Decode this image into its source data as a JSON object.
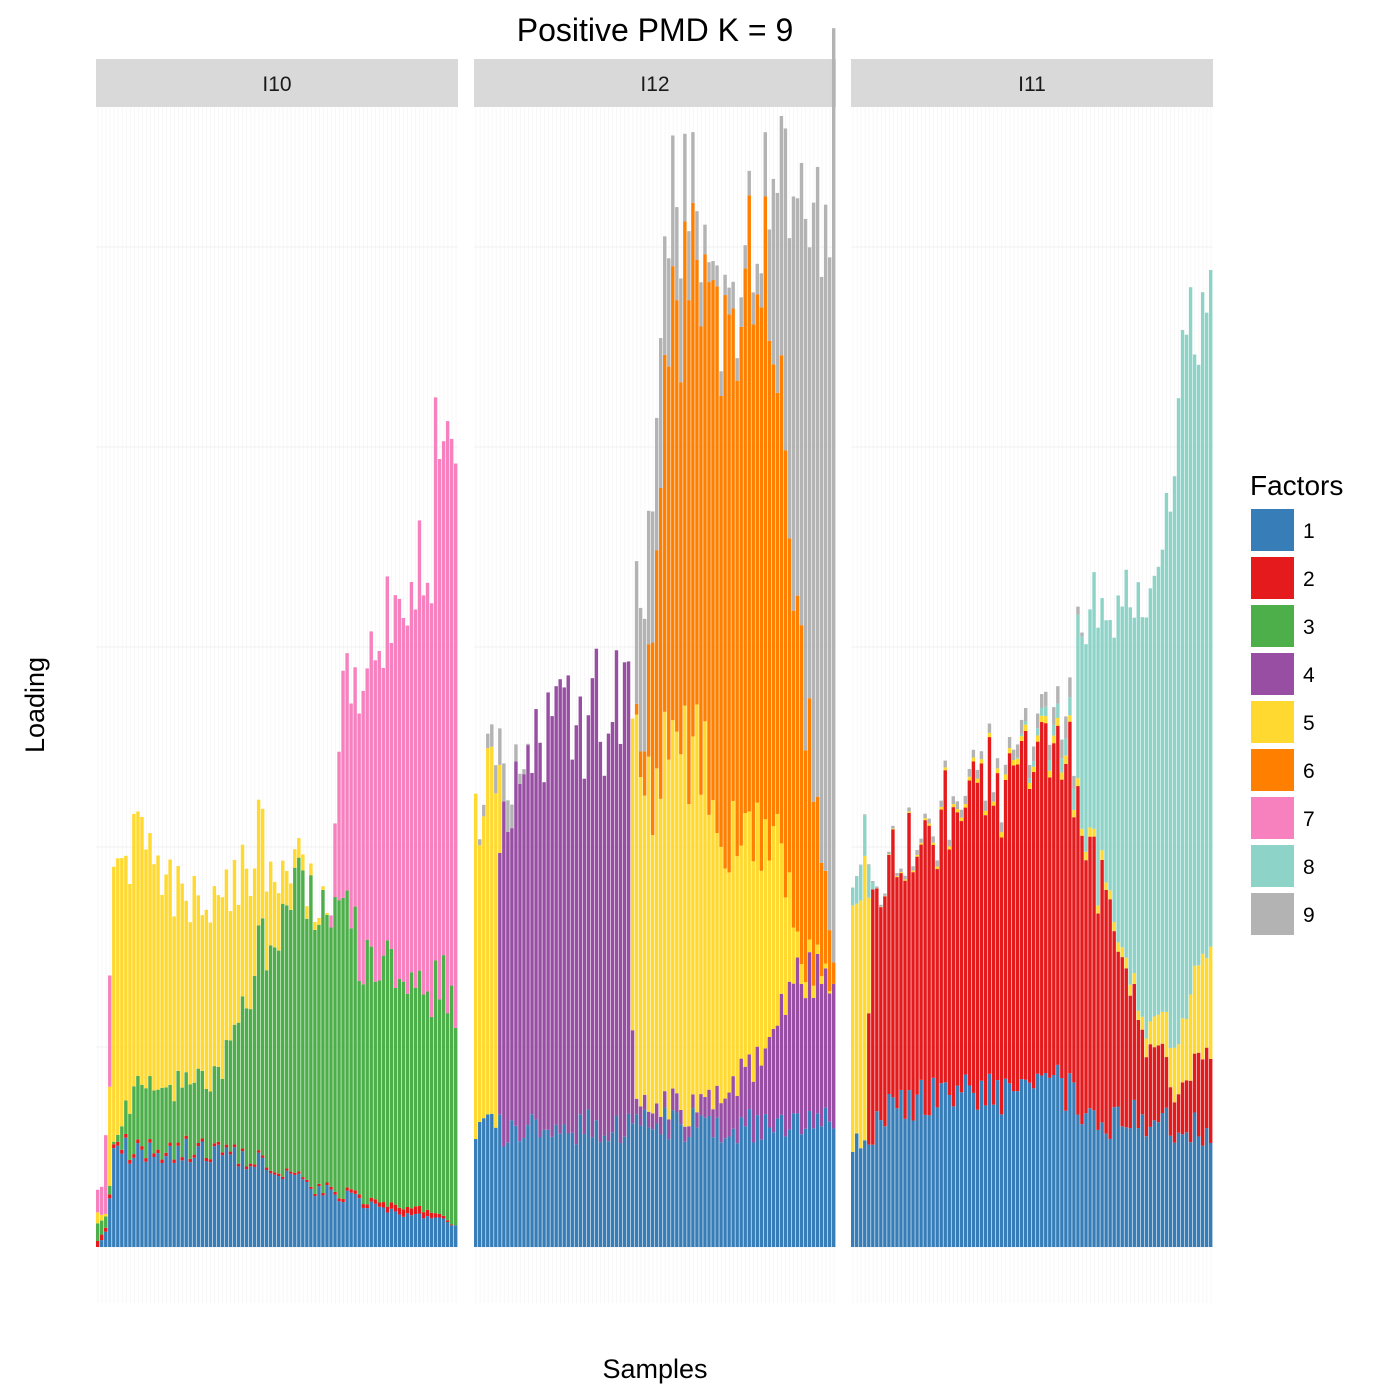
{
  "chart_data": {
    "type": "bar",
    "stacked": true,
    "title": "Positive PMD K = 9",
    "xlabel": "Samples",
    "ylabel": "Loading",
    "x_tick_labels_shown": false,
    "y_tick_labels_shown": false,
    "grid": true,
    "legend": {
      "title": "Factors",
      "position": "right",
      "items": [
        {
          "label": "1",
          "color": "#377EB8"
        },
        {
          "label": "2",
          "color": "#E41A1C"
        },
        {
          "label": "3",
          "color": "#4DAF4A"
        },
        {
          "label": "4",
          "color": "#984EA3"
        },
        {
          "label": "5",
          "color": "#FFD92F"
        },
        {
          "label": "6",
          "color": "#FF7F00"
        },
        {
          "label": "7",
          "color": "#F781BF"
        },
        {
          "label": "8",
          "color": "#8DD3C7"
        },
        {
          "label": "9",
          "color": "#B3B3B3"
        }
      ]
    },
    "ylim": [
      -0.28,
      5.7
    ],
    "samples_per_panel": 90,
    "panels": [
      {
        "label": "I10",
        "factors_shown": [
          "1",
          "2",
          "3",
          "5",
          "7"
        ],
        "segments": [
          {
            "factor": "1",
            "profile": [
              [
                0,
                0.0
              ],
              [
                0.03,
                0.1
              ],
              [
                0.04,
                0.49
              ],
              [
                0.2,
                0.48
              ],
              [
                0.35,
                0.46
              ],
              [
                0.5,
                0.4
              ],
              [
                0.6,
                0.3
              ],
              [
                0.75,
                0.22
              ],
              [
                1,
                0.11
              ]
            ]
          },
          {
            "factor": "2",
            "profile": [
              [
                0,
                0.03
              ],
              [
                0.02,
                0.02
              ],
              [
                0.6,
                0.01
              ],
              [
                0.75,
                0.02
              ],
              [
                0.9,
                0.04
              ],
              [
                1,
                0.0
              ]
            ]
          },
          {
            "factor": "3",
            "profile": [
              [
                0,
                0.08
              ],
              [
                0.03,
                0.05
              ],
              [
                0.05,
                0.0
              ],
              [
                0.1,
                0.3
              ],
              [
                0.3,
                0.35
              ],
              [
                0.35,
                0.4
              ],
              [
                0.5,
                1.3
              ],
              [
                0.6,
                1.5
              ],
              [
                0.72,
                1.25
              ],
              [
                0.85,
                1.15
              ],
              [
                1,
                1.13
              ]
            ]
          },
          {
            "factor": "5",
            "profile": [
              [
                0,
                0.05
              ],
              [
                0.03,
                0.0
              ],
              [
                0.04,
                1.35
              ],
              [
                0.1,
                1.25
              ],
              [
                0.2,
                1.0
              ],
              [
                0.35,
                0.8
              ],
              [
                0.45,
                0.55
              ],
              [
                0.55,
                0.1
              ],
              [
                0.65,
                0.0
              ],
              [
                1,
                0.0
              ]
            ]
          },
          {
            "factor": "7",
            "profile": [
              [
                0,
                0.1
              ],
              [
                0.02,
                0.15
              ],
              [
                0.03,
                0.95
              ],
              [
                0.04,
                0.0
              ],
              [
                0.65,
                0.0
              ],
              [
                0.68,
                1.0
              ],
              [
                0.8,
                1.6
              ],
              [
                0.9,
                2.1
              ],
              [
                0.97,
                2.8
              ],
              [
                1,
                2.5
              ]
            ]
          }
        ]
      },
      {
        "label": "I12",
        "factors_shown": [
          "1",
          "4",
          "5",
          "6",
          "9"
        ],
        "segments": [
          {
            "factor": "1",
            "profile": [
              [
                0,
                0.58
              ],
              [
                0.5,
                0.61
              ],
              [
                1,
                0.61
              ]
            ]
          },
          {
            "factor": "4",
            "profile": [
              [
                0,
                0.0
              ],
              [
                0.06,
                0.0
              ],
              [
                0.07,
                1.6
              ],
              [
                0.15,
                1.9
              ],
              [
                0.2,
                2.0
              ],
              [
                0.43,
                2.1
              ],
              [
                0.44,
                0.08
              ],
              [
                0.55,
                0.1
              ],
              [
                0.6,
                0.05
              ],
              [
                0.7,
                0.2
              ],
              [
                0.8,
                0.35
              ],
              [
                0.9,
                0.75
              ],
              [
                1,
                0.7
              ]
            ]
          },
          {
            "factor": "5",
            "profile": [
              [
                0,
                1.6
              ],
              [
                0.06,
                1.7
              ],
              [
                0.07,
                0.0
              ],
              [
                0.43,
                0.0
              ],
              [
                0.44,
                1.8
              ],
              [
                0.5,
                1.6
              ],
              [
                0.6,
                1.9
              ],
              [
                0.7,
                1.3
              ],
              [
                0.8,
                1.1
              ],
              [
                0.85,
                0.9
              ],
              [
                0.9,
                0.1
              ],
              [
                1,
                0.0
              ]
            ]
          },
          {
            "factor": "6",
            "profile": [
              [
                0,
                0.0
              ],
              [
                0.44,
                0.0
              ],
              [
                0.47,
                0.2
              ],
              [
                0.5,
                1.1
              ],
              [
                0.55,
                2.0
              ],
              [
                0.6,
                2.3
              ],
              [
                0.7,
                2.6
              ],
              [
                0.8,
                3.0
              ],
              [
                0.85,
                2.2
              ],
              [
                0.9,
                1.7
              ],
              [
                1,
                0.1
              ]
            ]
          },
          {
            "factor": "9",
            "profile": [
              [
                0,
                0.0
              ],
              [
                0.08,
                0.2
              ],
              [
                0.12,
                0.05
              ],
              [
                0.15,
                0.0
              ],
              [
                0.44,
                0.0
              ],
              [
                0.45,
                0.8
              ],
              [
                0.55,
                0.6
              ],
              [
                0.65,
                0.1
              ],
              [
                0.8,
                0.15
              ],
              [
                0.85,
                1.2
              ],
              [
                0.92,
                2.4
              ],
              [
                0.97,
                3.1
              ],
              [
                1,
                4.3
              ]
            ]
          }
        ]
      },
      {
        "label": "I11",
        "factors_shown": [
          "1",
          "2",
          "5",
          "8",
          "9"
        ],
        "segments": [
          {
            "factor": "1",
            "profile": [
              [
                0,
                0.55
              ],
              [
                0.06,
                0.6
              ],
              [
                0.1,
                0.72
              ],
              [
                0.3,
                0.75
              ],
              [
                0.6,
                0.8
              ],
              [
                0.65,
                0.6
              ],
              [
                0.8,
                0.65
              ],
              [
                0.9,
                0.6
              ],
              [
                1,
                0.58
              ]
            ]
          },
          {
            "factor": "2",
            "profile": [
              [
                0,
                0.0
              ],
              [
                0.04,
                0.0
              ],
              [
                0.05,
                1.2
              ],
              [
                0.2,
                1.3
              ],
              [
                0.3,
                1.5
              ],
              [
                0.4,
                1.55
              ],
              [
                0.5,
                1.65
              ],
              [
                0.6,
                1.55
              ],
              [
                0.62,
                1.5
              ],
              [
                0.7,
                1.2
              ],
              [
                0.8,
                0.5
              ],
              [
                0.9,
                0.2
              ],
              [
                1,
                0.45
              ]
            ]
          },
          {
            "factor": "5",
            "profile": [
              [
                0,
                1.25
              ],
              [
                0.04,
                1.3
              ],
              [
                0.05,
                0.0
              ],
              [
                0.8,
                0.05
              ],
              [
                0.9,
                0.25
              ],
              [
                0.95,
                0.4
              ],
              [
                1,
                0.55
              ]
            ]
          },
          {
            "factor": "8",
            "profile": [
              [
                0,
                0.1
              ],
              [
                0.04,
                0.2
              ],
              [
                0.06,
                0.0
              ],
              [
                0.45,
                0.0
              ],
              [
                0.55,
                0.05
              ],
              [
                0.62,
                0.1
              ],
              [
                0.63,
                0.9
              ],
              [
                0.7,
                1.3
              ],
              [
                0.8,
                2.2
              ],
              [
                0.9,
                2.9
              ],
              [
                1,
                3.4
              ]
            ]
          },
          {
            "factor": "9",
            "profile": [
              [
                0,
                0.0
              ],
              [
                0.4,
                0.05
              ],
              [
                0.55,
                0.08
              ],
              [
                0.6,
                0.1
              ],
              [
                0.65,
                0.0
              ],
              [
                1,
                0.0
              ]
            ]
          }
        ]
      }
    ]
  }
}
